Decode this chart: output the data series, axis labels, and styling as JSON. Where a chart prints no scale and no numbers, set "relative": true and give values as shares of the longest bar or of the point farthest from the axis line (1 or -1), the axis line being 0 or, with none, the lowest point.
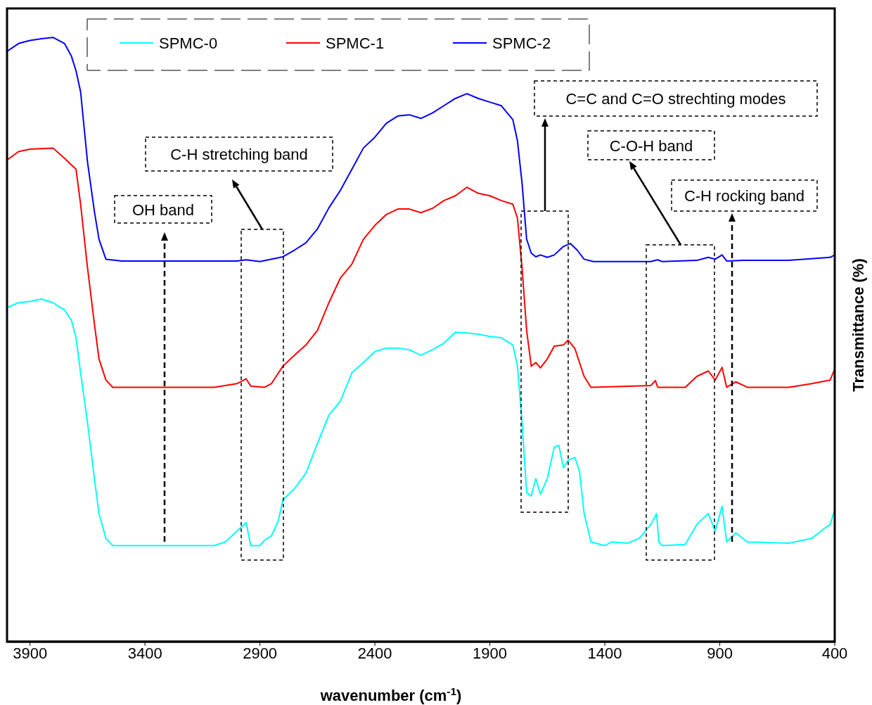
{
  "chart_data": {
    "type": "line",
    "relative": true,
    "xlabel": "wavenumber (cm$^{-1}$)",
    "ylabel": "Transmittance (%)",
    "xlim": [
      4000,
      400
    ],
    "xticks": [
      3900,
      3400,
      2900,
      2400,
      1900,
      1400,
      900,
      400
    ],
    "legend": "top",
    "grid": false,
    "annotations": [
      "OH band",
      "C-H stretching band",
      "C=C and C=O strechting modes",
      "C-O-H band",
      "C-H rocking band"
    ],
    "series": [
      {
        "name": "SPMC-0",
        "color": "#00ffff",
        "x": [
          4000,
          3950,
          3900,
          3850,
          3800,
          3750,
          3720,
          3700,
          3680,
          3650,
          3620,
          3600,
          3570,
          3540,
          3100,
          3050,
          3000,
          2960,
          2940,
          2900,
          2880,
          2850,
          2820,
          2800,
          2750,
          2700,
          2650,
          2600,
          2550,
          2500,
          2450,
          2400,
          2350,
          2300,
          2250,
          2200,
          2150,
          2100,
          2050,
          2000,
          1950,
          1900,
          1850,
          1800,
          1780,
          1760,
          1740,
          1720,
          1700,
          1680,
          1650,
          1620,
          1600,
          1580,
          1560,
          1530,
          1510,
          1490,
          1460,
          1400,
          1370,
          1300,
          1250,
          1200,
          1175,
          1165,
          1150,
          1050,
          1000,
          950,
          920,
          890,
          870,
          830,
          780,
          600,
          500,
          450,
          420,
          400
        ],
        "values": [
          0.553,
          0.561,
          0.563,
          0.567,
          0.561,
          0.549,
          0.532,
          0.503,
          0.445,
          0.363,
          0.27,
          0.212,
          0.171,
          0.159,
          0.159,
          0.165,
          0.183,
          0.197,
          0.159,
          0.159,
          0.168,
          0.175,
          0.2,
          0.235,
          0.253,
          0.279,
          0.328,
          0.375,
          0.398,
          0.445,
          0.462,
          0.48,
          0.486,
          0.486,
          0.483,
          0.474,
          0.483,
          0.494,
          0.512,
          0.511,
          0.509,
          0.505,
          0.503,
          0.491,
          0.456,
          0.363,
          0.247,
          0.241,
          0.27,
          0.244,
          0.27,
          0.322,
          0.325,
          0.288,
          0.3,
          0.305,
          0.282,
          0.212,
          0.165,
          0.159,
          0.165,
          0.163,
          0.171,
          0.194,
          0.212,
          0.165,
          0.159,
          0.161,
          0.194,
          0.212,
          0.183,
          0.224,
          0.165,
          0.18,
          0.165,
          0.163,
          0.171,
          0.186,
          0.194,
          0.218
        ]
      },
      {
        "name": "SPMC-1",
        "color": "#ff0000",
        "x": [
          4000,
          3950,
          3900,
          3850,
          3800,
          3750,
          3700,
          3680,
          3650,
          3620,
          3600,
          3570,
          3540,
          3100,
          3000,
          2960,
          2940,
          2880,
          2850,
          2800,
          2750,
          2700,
          2650,
          2600,
          2550,
          2500,
          2450,
          2400,
          2350,
          2300,
          2250,
          2200,
          2150,
          2100,
          2050,
          2000,
          1950,
          1900,
          1850,
          1800,
          1780,
          1760,
          1740,
          1720,
          1700,
          1680,
          1650,
          1620,
          1580,
          1560,
          1530,
          1490,
          1460,
          1200,
          1180,
          1170,
          1050,
          1000,
          950,
          920,
          890,
          870,
          830,
          780,
          600,
          500,
          420,
          400
        ],
        "values": [
          0.797,
          0.811,
          0.815,
          0.816,
          0.817,
          0.8,
          0.782,
          0.724,
          0.619,
          0.526,
          0.468,
          0.433,
          0.421,
          0.421,
          0.427,
          0.435,
          0.423,
          0.421,
          0.427,
          0.456,
          0.474,
          0.491,
          0.515,
          0.561,
          0.602,
          0.625,
          0.666,
          0.689,
          0.707,
          0.716,
          0.716,
          0.71,
          0.717,
          0.73,
          0.738,
          0.752,
          0.742,
          0.738,
          0.73,
          0.724,
          0.701,
          0.619,
          0.515,
          0.456,
          0.462,
          0.453,
          0.468,
          0.489,
          0.491,
          0.499,
          0.485,
          0.439,
          0.421,
          0.424,
          0.432,
          0.421,
          0.421,
          0.439,
          0.448,
          0.433,
          0.454,
          0.421,
          0.43,
          0.421,
          0.421,
          0.427,
          0.433,
          0.451
        ]
      },
      {
        "name": "SPMC-2",
        "color": "#0000ff",
        "x": [
          4000,
          3950,
          3900,
          3850,
          3800,
          3750,
          3720,
          3700,
          3680,
          3650,
          3620,
          3600,
          3570,
          3500,
          3000,
          2960,
          2900,
          2800,
          2750,
          2700,
          2650,
          2600,
          2550,
          2500,
          2450,
          2400,
          2350,
          2300,
          2250,
          2200,
          2150,
          2100,
          2050,
          2000,
          1950,
          1900,
          1850,
          1800,
          1780,
          1760,
          1740,
          1720,
          1700,
          1680,
          1650,
          1620,
          1580,
          1550,
          1520,
          1490,
          1450,
          1200,
          1170,
          1150,
          1000,
          950,
          920,
          890,
          870,
          800,
          600,
          420,
          400
        ],
        "values": [
          0.977,
          0.99,
          0.995,
          0.998,
          1,
          0.99,
          0.969,
          0.945,
          0.91,
          0.794,
          0.712,
          0.666,
          0.633,
          0.63,
          0.63,
          0.632,
          0.629,
          0.637,
          0.648,
          0.66,
          0.683,
          0.718,
          0.747,
          0.782,
          0.817,
          0.835,
          0.858,
          0.87,
          0.872,
          0.866,
          0.875,
          0.887,
          0.899,
          0.907,
          0.899,
          0.893,
          0.887,
          0.864,
          0.829,
          0.759,
          0.666,
          0.643,
          0.637,
          0.64,
          0.636,
          0.64,
          0.654,
          0.659,
          0.648,
          0.633,
          0.629,
          0.629,
          0.632,
          0.629,
          0.631,
          0.636,
          0.633,
          0.64,
          0.63,
          0.631,
          0.631,
          0.636,
          0.64
        ]
      }
    ]
  }
}
